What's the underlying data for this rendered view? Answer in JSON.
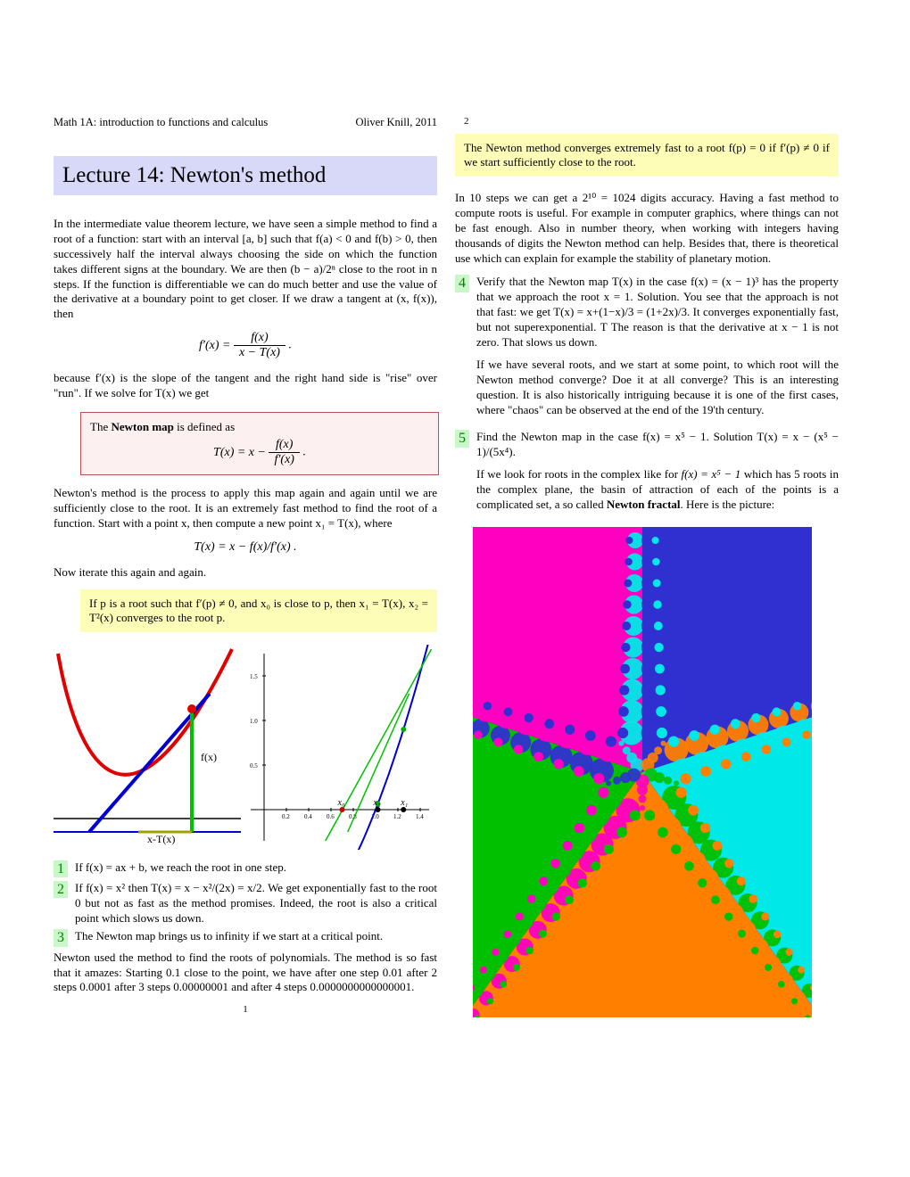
{
  "header": {
    "course": "Math 1A: introduction to functions and calculus",
    "author": "Oliver Knill, 2011"
  },
  "title": "Lecture 14: Newton's method",
  "p1": "In the intermediate value theorem lecture, we have seen a simple method to find a root of a function: start with an interval [a, b] such that f(a) < 0 and f(b) > 0, then successively half the interval always choosing the side on which the function takes different signs at the boundary. We are then (b − a)/2ⁿ close to the root in n steps. If the function is differentiable we can do much better and use the value of the derivative at a boundary point to get closer. If we draw a tangent at (x, f(x)), then",
  "eq1": "f′(x) = f(x) / (x − T(x)) .",
  "p2": "because f′(x) is the slope of the tangent and the right hand side is \"rise\" over \"run\". If we solve for T(x) we get",
  "box1_label": "The Newton map is defined as",
  "box1_eq": "T(x) = x − f(x) / f′(x) .",
  "p3": "Newton's method is the process to apply this map again and again until we are sufficiently close to the root. It is an extremely fast method to find the root of a function. Start with a point x, then compute a new point x₁ = T(x), where",
  "eq2": "T(x) = x − f(x)/f′(x) .",
  "p4": "Now iterate this again and again.",
  "yellow1": "If p is a root such that f′(p) ≠ 0, and x₀ is close to p, then x₁ = T(x), x₂ = T²(x) converges to the root p.",
  "items": [
    "If f(x) = ax + b, we reach the root in one step.",
    "If f(x) = x² then T(x) = x − x²/(2x) = x/2. We get exponentially fast to the root 0 but not as fast as the method promises. Indeed, the root is also a critical point which slows us down.",
    "The Newton map brings us to infinity if we start at a critical point."
  ],
  "p5": "Newton used the method to find the roots of polynomials. The method is so fast that it amazes: Starting 0.1 close to the point, we have after one step 0.01 after 2 steps 0.0001 after 3 steps 0.00000001 and after 4 steps 0.0000000000000001.",
  "page1num": "1",
  "page2num": "2",
  "yellow2": "The Newton method converges extremely fast to a root f(p) = 0 if f′(p) ≠ 0 if we start sufficiently close to the root.",
  "p6": "In 10 steps we can get a 2¹⁰ = 1024 digits accuracy. Having a fast method to compute roots is useful. For example in computer graphics, where things can not be fast enough. Also in number theory, when working with integers having thousands of digits the Newton method can help. Besides that, there is theoretical use which can explain for example the stability of planetary motion.",
  "item4a": "Verify that the Newton map T(x) in the case f(x) = (x − 1)³ has the property that we approach the root x = 1. Solution. You see that the approach is not that fast: we get T(x) = x+(1−x)/3 = (1+2x)/3. It converges exponentially fast, but not superexponential. T The reason is that the derivative at x − 1 is not zero. That slows us down.",
  "item4b": "If we have several roots, and we start at some point, to which root will the Newton method converge? Doe it at all converge? This is an interesting question. It is also historically intriguing because it is one of the first cases, where \"chaos\" can be observed at the end of the 19'th century.",
  "item5a": "Find the Newton map in the case f(x) = x⁵ − 1. Solution T(x) = x − (x⁵ − 1)/(5x⁴).",
  "item5b": "If we look for roots in the complex like for f(x) = x⁵ − 1 which has 5 roots in the complex plane, the basin of attraction of each of the points is a complicated set, a so called Newton fractal. Here is the picture:",
  "fig1": {
    "label_fx": "f(x)",
    "label_xtx": "x-T(x)",
    "curve_color": "#e00000",
    "tangent_color": "#0000d0",
    "vert_color": "#00c000",
    "axis_color": "#000000",
    "bg": "#ffffff"
  },
  "fig2": {
    "curve_color": "#0000d0",
    "tangent_color": "#00c000",
    "marker_color": "#00b000",
    "root_marker_color": "#d00000",
    "axis_color": "#000000",
    "labels": {
      "x0": "x₀",
      "x1": "x₁",
      "x2": "x₂"
    },
    "xticks": [
      "0.2",
      "0.4",
      "0.6",
      "0.8",
      "1.0",
      "1.2",
      "1.4"
    ],
    "yticks": [
      "0.5",
      "1.0",
      "1.5"
    ],
    "bg": "#ffffff"
  },
  "fractal": {
    "colors": {
      "magenta": "#ff00c0",
      "blue": "#3030d0",
      "cyan": "#00e8e8",
      "orange": "#ff8000",
      "green": "#00c000"
    },
    "bg": "#000000"
  }
}
